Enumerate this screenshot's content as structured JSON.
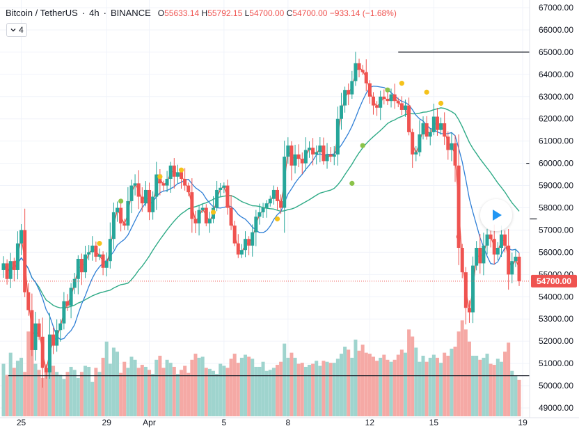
{
  "header": {
    "symbol": "Bitcoin / TetherUS",
    "interval": "4h",
    "exchange": "BINANCE",
    "open_label": "O",
    "open": "55633.14",
    "high_label": "H",
    "high": "55792.15",
    "low_label": "L",
    "low": "54700.00",
    "close_label": "C",
    "close": "54700.00",
    "change": "−933.14 (−1.68%)"
  },
  "indicators_toggle": {
    "icon": "chevron-down-icon",
    "count": "4"
  },
  "play_button": {
    "icon": "play-icon"
  },
  "colors": {
    "up": "#26a69a",
    "down": "#ef5350",
    "volume_up": "#9fd4ce",
    "volume_down": "#f5a9a5",
    "ma_fast": "#e8443a",
    "ma_mid": "#2f7fd6",
    "ma_slow": "#2eaa86",
    "marker_yellow": "#f5c21b",
    "marker_green": "#8bc34a",
    "price_label_bg": "#ef5350",
    "axis_text": "#131722",
    "grid": "#f0f3fa"
  },
  "chart_data": {
    "type": "candlestick",
    "title": "Bitcoin / TetherUS · 4h · BINANCE",
    "y_axis_ticks": [
      "67000.00",
      "66000.00",
      "65000.00",
      "64000.00",
      "63000.00",
      "62000.00",
      "61000.00",
      "60000.00",
      "59000.00",
      "58000.00",
      "57000.00",
      "56000.00",
      "55000.00",
      "54000.00",
      "53000.00",
      "52000.00",
      "51000.00",
      "50000.00",
      "49000.00"
    ],
    "y_range": [
      48600,
      67200
    ],
    "x_axis_labels": [
      {
        "label": "25",
        "at": 5
      },
      {
        "label": "29",
        "at": 29
      },
      {
        "label": "Apr",
        "at": 41
      },
      {
        "label": "5",
        "at": 62
      },
      {
        "label": "8",
        "at": 80
      },
      {
        "label": "12",
        "at": 103
      },
      {
        "label": "15",
        "at": 121
      },
      {
        "label": "19",
        "at": 146
      }
    ],
    "last_price": "54700.00",
    "last_price_value": 54700,
    "horizontal_lines": [
      {
        "price": 65000,
        "from": 111,
        "to": 160
      },
      {
        "price": 60000,
        "from": 147,
        "to": 160
      },
      {
        "price": 57500,
        "from": 150,
        "to": 160
      },
      {
        "price": 50450,
        "from": 0,
        "to": 160
      }
    ],
    "closes": [
      55500,
      54800,
      55600,
      55200,
      56400,
      57000,
      54200,
      53400,
      51600,
      52800,
      52200,
      50800,
      50600,
      52300,
      51800,
      52500,
      52800,
      53800,
      53600,
      54400,
      54800,
      55700,
      55100,
      55900,
      56000,
      56300,
      55800,
      55900,
      55300,
      55600,
      56600,
      57800,
      58000,
      57300,
      57200,
      58300,
      59000,
      59100,
      58500,
      58200,
      58800,
      57800,
      58500,
      59500,
      59100,
      59000,
      59300,
      59900,
      59400,
      59600,
      59300,
      59000,
      58700,
      57500,
      57300,
      57900,
      58000,
      57300,
      57500,
      58000,
      58800,
      58900,
      59000,
      58000,
      57200,
      56400,
      55900,
      56100,
      56600,
      56300,
      56900,
      57600,
      57800,
      58000,
      58200,
      58400,
      58800,
      58300,
      58000,
      60300,
      60800,
      59900,
      60400,
      60200,
      60000,
      60600,
      60700,
      60400,
      60500,
      60800,
      60100,
      60400,
      60300,
      60400,
      62000,
      62600,
      63300,
      63100,
      63700,
      64500,
      64200,
      64100,
      63600,
      63000,
      62600,
      62500,
      63000,
      62900,
      62800,
      63100,
      62800,
      62700,
      62400,
      62600,
      61400,
      60400,
      60500,
      61300,
      61800,
      61200,
      61400,
      62100,
      61500,
      61800,
      61200,
      60600,
      60900,
      59900,
      56200,
      55100,
      53500,
      53300,
      55400,
      56200,
      55500,
      56300,
      56800,
      56600,
      55900,
      56200,
      56800,
      56300,
      55000,
      55600,
      55800,
      54700
    ],
    "volumes": [
      52,
      41,
      63,
      48,
      55,
      58,
      44,
      84,
      66,
      52,
      46,
      38,
      44,
      56,
      50,
      44,
      41,
      37,
      44,
      49,
      46,
      38,
      44,
      50,
      49,
      34,
      48,
      44,
      58,
      74,
      52,
      68,
      64,
      43,
      54,
      48,
      59,
      56,
      48,
      51,
      49,
      46,
      42,
      56,
      60,
      48,
      56,
      53,
      49,
      42,
      46,
      50,
      43,
      56,
      62,
      58,
      59,
      48,
      47,
      45,
      42,
      52,
      50,
      48,
      57,
      62,
      53,
      58,
      61,
      59,
      57,
      49,
      49,
      54,
      45,
      46,
      48,
      51,
      54,
      72,
      58,
      63,
      58,
      52,
      53,
      49,
      51,
      52,
      55,
      50,
      55,
      54,
      53,
      53,
      57,
      62,
      69,
      66,
      58,
      76,
      65,
      71,
      63,
      62,
      59,
      55,
      58,
      61,
      56,
      54,
      56,
      61,
      66,
      63,
      86,
      79,
      68,
      54,
      60,
      54,
      58,
      61,
      58,
      53,
      63,
      60,
      67,
      69,
      84,
      95,
      86,
      74,
      60,
      60,
      56,
      58,
      62,
      52,
      51,
      57,
      54,
      64,
      73,
      45,
      40,
      36
    ]
  }
}
